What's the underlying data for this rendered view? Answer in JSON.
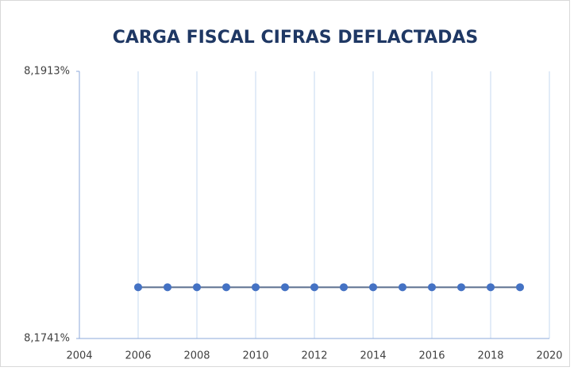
{
  "chart_data": {
    "type": "line",
    "title": "CARGA FISCAL  CIFRAS DEFLACTADAS",
    "x": [
      2006,
      2007,
      2008,
      2009,
      2010,
      2011,
      2012,
      2013,
      2014,
      2015,
      2016,
      2017,
      2018,
      2019
    ],
    "series": [
      {
        "name": null,
        "color": "#4472c4",
        "values": [
          8.1774,
          8.1774,
          8.1774,
          8.1774,
          8.1774,
          8.1774,
          8.1774,
          8.1774,
          8.1774,
          8.1774,
          8.1774,
          8.1774,
          8.1774,
          8.1774
        ]
      }
    ],
    "xlim": [
      2004,
      2020
    ],
    "xticks": [
      2004,
      2006,
      2008,
      2010,
      2012,
      2014,
      2016,
      2018,
      2020
    ],
    "ylim": [
      8.1741,
      8.1913
    ],
    "yticks": [
      {
        "value": 8.1741,
        "label": "8,1741%"
      },
      {
        "value": 8.1913,
        "label": "8,1913%"
      }
    ],
    "grid": true
  }
}
